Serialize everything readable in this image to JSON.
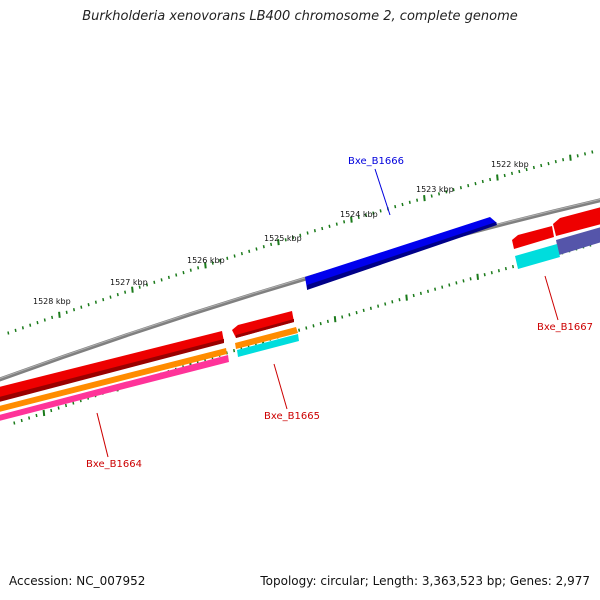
{
  "title": "Burkholderia xenovorans LB400 chromosome 2, complete genome",
  "footer": {
    "accession": "Accession: NC_007952",
    "summary": "Topology: circular; Length: 3,363,523 bp; Genes: 2,977"
  },
  "scale": {
    "unit": "kbp",
    "labels": [
      {
        "text": "1522 kbp"
      },
      {
        "text": "1523 kbp"
      },
      {
        "text": "1524 kbp"
      },
      {
        "text": "1525 kbp"
      },
      {
        "text": "1526 kbp"
      },
      {
        "text": "1527 kbp"
      },
      {
        "text": "1528 kbp"
      }
    ]
  },
  "genes": [
    {
      "name": "Bxe_B1666",
      "color": "#0000dd"
    },
    {
      "name": "Bxe_B1665",
      "color": "#cc0000"
    },
    {
      "name": "Bxe_B1664",
      "color": "#cc0000"
    },
    {
      "name": "Bxe_B1667",
      "color": "#cc0000"
    }
  ],
  "colors": {
    "backbone": "#808080",
    "cds": "#ee0000",
    "gene_forward": "#0000ee",
    "rna": "#ff8c00",
    "misc": "#ff3399",
    "cyan": "#00dddd",
    "purple": "#5555aa",
    "ticks": "#1a7a1a"
  }
}
